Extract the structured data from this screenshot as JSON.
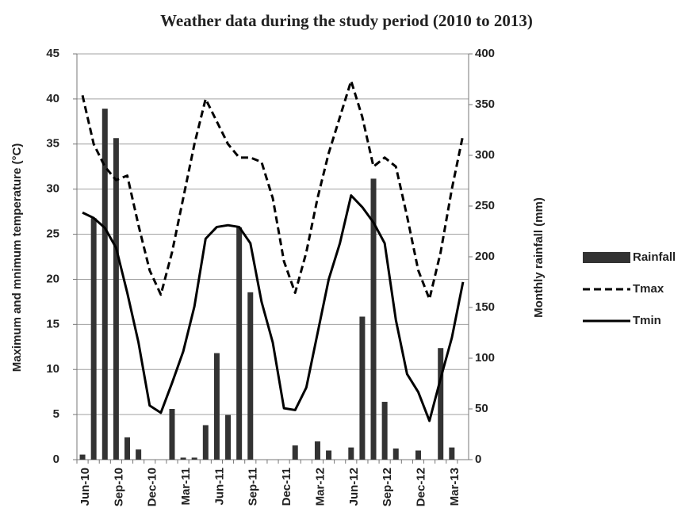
{
  "chart_data": {
    "type": "bar-line",
    "title": "Weather data during the study period (2010 to 2013)",
    "y_label": "Maximum and mnimum temperature (°C)",
    "y2_label": "Monthly rainfall (mm)",
    "categories": [
      "Jun-10",
      null,
      null,
      "Sep-10",
      null,
      null,
      "Dec-10",
      null,
      null,
      "Mar-11",
      null,
      null,
      "Jun-11",
      null,
      null,
      "Sep-11",
      null,
      null,
      "Dec-11",
      null,
      null,
      "Mar-12",
      null,
      null,
      "Jun-12",
      null,
      null,
      "Sep-12",
      null,
      null,
      "Dec-12",
      null,
      null,
      "Mar-13",
      null
    ],
    "series": [
      {
        "name": "Rainfall",
        "type": "bar",
        "axis": "y2",
        "color": "#333333",
        "values": [
          5,
          238,
          346,
          317,
          22,
          10,
          0,
          0,
          50,
          2,
          2,
          34,
          105,
          44,
          229,
          165,
          0,
          0,
          0,
          14,
          0,
          18,
          9,
          0,
          12,
          141,
          277,
          57,
          11,
          0,
          9,
          0,
          110,
          12,
          0
        ]
      },
      {
        "name": "Tmax",
        "type": "line",
        "dashed": true,
        "color": "#000000",
        "values": [
          40.4,
          35,
          32.5,
          31,
          31.5,
          26,
          21,
          18.3,
          23,
          29,
          35,
          40,
          37.5,
          35,
          33.5,
          33.5,
          33,
          29,
          22,
          18.5,
          23,
          29,
          34,
          38,
          42,
          38,
          32.5,
          33.5,
          32.5,
          27,
          21,
          17.8,
          23,
          30,
          36
        ]
      },
      {
        "name": "Tmin",
        "type": "line",
        "dashed": false,
        "color": "#000000",
        "values": [
          27.4,
          26.8,
          25.7,
          23.5,
          18.5,
          13,
          6,
          5.2,
          8.5,
          12,
          17,
          24.5,
          25.8,
          26,
          25.8,
          24,
          17.5,
          13,
          5.7,
          5.5,
          8,
          14,
          20,
          24,
          29.3,
          28,
          26.3,
          24,
          15.5,
          9.5,
          7.5,
          4.3,
          9,
          13.5,
          19.7
        ]
      }
    ],
    "ylim": [
      0,
      45
    ],
    "yticks": [
      0,
      5,
      10,
      15,
      20,
      25,
      30,
      35,
      40,
      45
    ],
    "y2lim": [
      0,
      400
    ],
    "y2ticks": [
      0,
      50,
      100,
      150,
      200,
      250,
      300,
      350,
      400
    ],
    "grid": true,
    "legend": "right"
  }
}
